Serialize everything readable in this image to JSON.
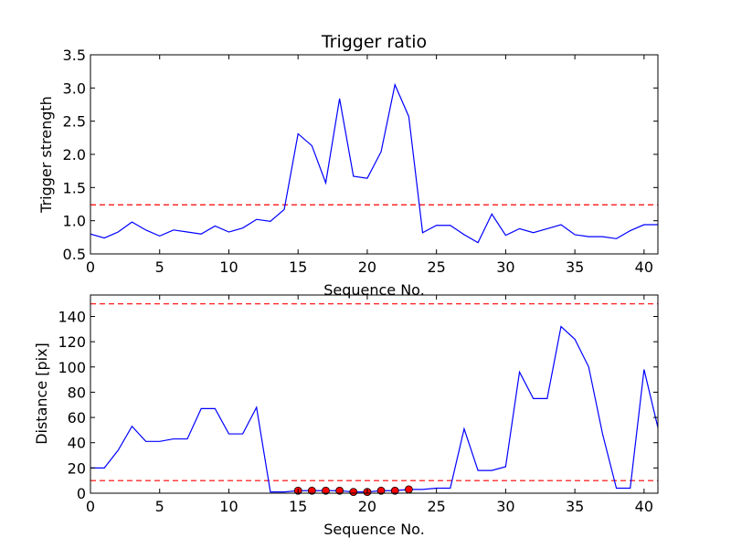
{
  "chart_data": [
    {
      "type": "line",
      "title": "Trigger ratio",
      "xlabel": "Sequence No.",
      "ylabel": "Trigger strength",
      "xlim": [
        0,
        41
      ],
      "ylim": [
        0.5,
        3.5
      ],
      "xticks": [
        "0",
        "5",
        "10",
        "15",
        "20",
        "25",
        "30",
        "35",
        "40"
      ],
      "yticks": [
        "0.5",
        "1.0",
        "1.5",
        "2.0",
        "2.5",
        "3.0",
        "3.5"
      ],
      "grid": false,
      "colors": {
        "series": "#0000ff",
        "threshold": "#ff0000"
      },
      "series": [
        {
          "x": [
            0,
            1,
            2,
            3,
            4,
            5,
            6,
            7,
            8,
            9,
            10,
            11,
            12,
            13,
            14,
            15,
            16,
            17,
            18,
            19,
            20,
            21,
            22,
            23,
            24,
            25,
            26,
            27,
            28,
            29,
            30,
            31,
            32,
            33,
            34,
            35,
            36,
            37,
            38,
            39,
            40,
            41
          ],
          "values": [
            0.8,
            0.74,
            0.83,
            0.98,
            0.86,
            0.77,
            0.86,
            0.83,
            0.8,
            0.92,
            0.83,
            0.89,
            1.02,
            0.99,
            1.17,
            2.31,
            2.13,
            1.57,
            2.84,
            1.67,
            1.64,
            2.04,
            3.05,
            2.57,
            0.82,
            0.93,
            0.93,
            0.79,
            0.67,
            1.1,
            0.78,
            0.88,
            0.82,
            0.88,
            0.94,
            0.79,
            0.76,
            0.76,
            0.73,
            0.85,
            0.94,
            0.94
          ]
        }
      ],
      "thresholds": [
        1.24
      ]
    },
    {
      "type": "line",
      "title": "",
      "xlabel": "Sequence No.",
      "ylabel": "Distance [pix]",
      "xlim": [
        0,
        41
      ],
      "ylim": [
        0,
        157
      ],
      "xticks": [
        "0",
        "5",
        "10",
        "15",
        "20",
        "25",
        "30",
        "35",
        "40"
      ],
      "yticks": [
        "0",
        "20",
        "40",
        "60",
        "80",
        "100",
        "120",
        "140"
      ],
      "grid": false,
      "colors": {
        "series": "#0000ff",
        "threshold": "#ff0000",
        "marker": "#ff0000"
      },
      "series": [
        {
          "x": [
            0,
            1,
            2,
            3,
            4,
            5,
            6,
            7,
            8,
            9,
            10,
            11,
            12,
            13,
            14,
            15,
            16,
            17,
            18,
            19,
            20,
            21,
            22,
            23,
            24,
            25,
            26,
            27,
            28,
            29,
            30,
            31,
            32,
            33,
            34,
            35,
            36,
            37,
            38,
            39,
            40,
            41
          ],
          "values": [
            20,
            20,
            34,
            53,
            41,
            41,
            43,
            43,
            67,
            67,
            47,
            47,
            68,
            1,
            1,
            2,
            2,
            2,
            2,
            1,
            1,
            2,
            2,
            3,
            3,
            4,
            4,
            51,
            18,
            18,
            21,
            96,
            75,
            75,
            132,
            122,
            100,
            47,
            4,
            4,
            98,
            52
          ]
        }
      ],
      "markers": {
        "x": [
          15,
          16,
          17,
          18,
          19,
          20,
          21,
          22,
          23
        ],
        "values": [
          2,
          2,
          2,
          2,
          1,
          1,
          2,
          2,
          3
        ]
      },
      "thresholds": [
        150,
        10
      ]
    }
  ]
}
